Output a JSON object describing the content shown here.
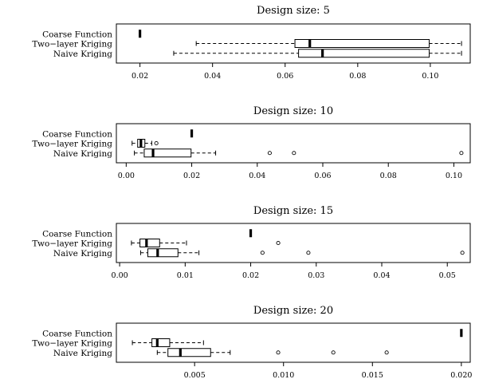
{
  "chart_data": [
    {
      "type": "boxplot",
      "title": "Design size: 5",
      "categories": [
        "Coarse Function",
        "Two−layer Kriging",
        "Naive Kriging"
      ],
      "xlim": [
        0.0135,
        0.111
      ],
      "xticks": [
        0.02,
        0.04,
        0.06,
        0.08,
        0.1
      ],
      "xtick_labels": [
        "0.02",
        "0.04",
        "0.06",
        "0.08",
        "0.10"
      ],
      "boxes": [
        {
          "min": 0.02,
          "q1": 0.02,
          "median": 0.02,
          "q3": 0.02,
          "max": 0.02,
          "outliers": []
        },
        {
          "min": 0.0355,
          "q1": 0.0627,
          "median": 0.0668,
          "q3": 0.0997,
          "max": 0.1086,
          "outliers": []
        },
        {
          "min": 0.0293,
          "q1": 0.0637,
          "median": 0.0703,
          "q3": 0.0997,
          "max": 0.1086,
          "outliers": []
        }
      ]
    },
    {
      "type": "boxplot",
      "title": "Design size: 10",
      "categories": [
        "Coarse Function",
        "Two−layer Kriging",
        "Naive Kriging"
      ],
      "xlim": [
        -0.003,
        0.105
      ],
      "xticks": [
        0.0,
        0.02,
        0.04,
        0.06,
        0.08,
        0.1
      ],
      "xtick_labels": [
        "0.00",
        "0.02",
        "0.04",
        "0.06",
        "0.08",
        "0.10"
      ],
      "boxes": [
        {
          "min": 0.02,
          "q1": 0.02,
          "median": 0.02,
          "q3": 0.02,
          "max": 0.02,
          "outliers": []
        },
        {
          "min": 0.0018,
          "q1": 0.0035,
          "median": 0.0045,
          "q3": 0.0057,
          "max": 0.0078,
          "outliers": [
            0.0092
          ]
        },
        {
          "min": 0.0025,
          "q1": 0.0055,
          "median": 0.0082,
          "q3": 0.0198,
          "max": 0.0273,
          "outliers": [
            0.0438,
            0.0512,
            0.1023
          ]
        }
      ]
    },
    {
      "type": "boxplot",
      "title": "Design size: 15",
      "categories": [
        "Coarse Function",
        "Two−layer Kriging",
        "Naive Kriging"
      ],
      "xlim": [
        -0.0005,
        0.0535
      ],
      "xticks": [
        0.0,
        0.01,
        0.02,
        0.03,
        0.04,
        0.05
      ],
      "xtick_labels": [
        "0.00",
        "0.01",
        "0.02",
        "0.03",
        "0.04",
        "0.05"
      ],
      "boxes": [
        {
          "min": 0.02,
          "q1": 0.02,
          "median": 0.02,
          "q3": 0.02,
          "max": 0.02,
          "outliers": []
        },
        {
          "min": 0.0018,
          "q1": 0.0031,
          "median": 0.0041,
          "q3": 0.0061,
          "max": 0.0102,
          "outliers": [
            0.0242
          ]
        },
        {
          "min": 0.0032,
          "q1": 0.0043,
          "median": 0.0058,
          "q3": 0.0089,
          "max": 0.0121,
          "outliers": [
            0.0218,
            0.0288,
            0.0523
          ]
        }
      ]
    },
    {
      "type": "boxplot",
      "title": "Design size: 20",
      "categories": [
        "Coarse Function",
        "Two−layer Kriging",
        "Naive Kriging"
      ],
      "xlim": [
        0.0006,
        0.0205
      ],
      "xticks": [
        0.005,
        0.01,
        0.015,
        0.02
      ],
      "xtick_labels": [
        "0.005",
        "0.010",
        "0.015",
        "0.020"
      ],
      "boxes": [
        {
          "min": 0.02,
          "q1": 0.02,
          "median": 0.02,
          "q3": 0.02,
          "max": 0.02,
          "outliers": []
        },
        {
          "min": 0.0015,
          "q1": 0.0026,
          "median": 0.0029,
          "q3": 0.0036,
          "max": 0.0055,
          "outliers": []
        },
        {
          "min": 0.0029,
          "q1": 0.0035,
          "median": 0.0042,
          "q3": 0.0059,
          "max": 0.007,
          "outliers": [
            0.0097,
            0.0128,
            0.0158
          ]
        }
      ]
    }
  ]
}
